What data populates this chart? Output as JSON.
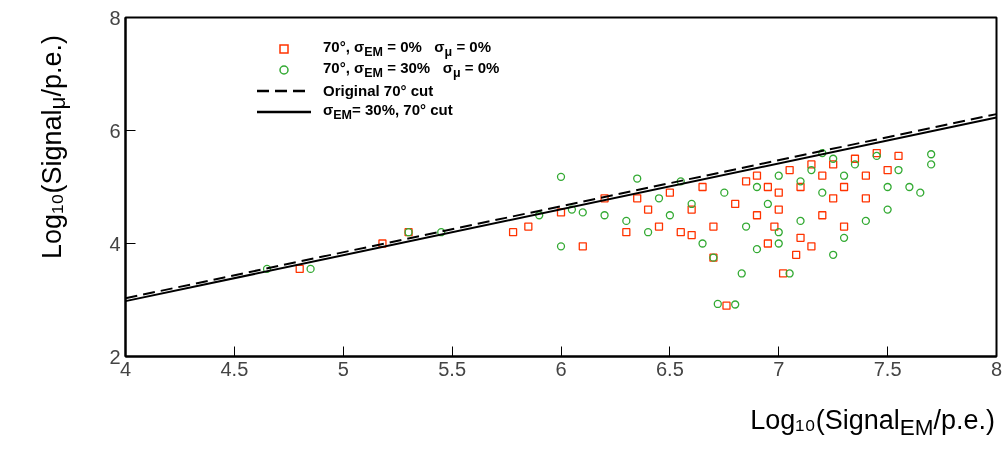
{
  "chart_data": {
    "type": "scatter",
    "xlabel": "Log₁₀(Signal$_{EM}$/p.e.)",
    "ylabel": "Log₁₀(Signal$_{μ}$/p.e.)",
    "xlim": [
      4,
      8
    ],
    "ylim": [
      2,
      8
    ],
    "xticks": [
      4,
      4.5,
      5,
      5.5,
      6,
      6.5,
      7,
      7.5,
      8
    ],
    "yticks": [
      2,
      4,
      6,
      8
    ],
    "grid": false,
    "legend": "top left",
    "series": [
      {
        "name": "70°, σ$_{EM}$ = 0%   σ$_{μ}$ = 0%",
        "marker": "square",
        "color": "#ff3300",
        "x": [
          4.8,
          5.18,
          5.3,
          5.78,
          5.85,
          6.0,
          6.1,
          6.2,
          6.3,
          6.35,
          6.4,
          6.45,
          6.5,
          6.55,
          6.6,
          6.65,
          6.7,
          6.7,
          6.76,
          6.8,
          6.85,
          6.9,
          6.9,
          6.95,
          7.0,
          7.02,
          7.05,
          7.1,
          7.1,
          7.15,
          7.15,
          7.2,
          7.2,
          7.25,
          7.25,
          7.3,
          7.3,
          7.35,
          7.4,
          7.45,
          7.5,
          7.55,
          6.98,
          6.6,
          7.08,
          6.95,
          7.0,
          7.4
        ],
        "values": [
          3.55,
          4.0,
          4.2,
          4.2,
          4.3,
          4.55,
          3.95,
          4.8,
          4.2,
          4.8,
          4.6,
          4.3,
          4.9,
          4.2,
          4.6,
          5.0,
          3.75,
          4.3,
          2.9,
          4.7,
          5.1,
          4.5,
          5.2,
          4.0,
          4.9,
          3.47,
          5.3,
          4.1,
          5.0,
          3.95,
          5.4,
          4.5,
          5.2,
          4.8,
          5.4,
          5.0,
          4.3,
          5.5,
          5.2,
          5.6,
          5.3,
          5.55,
          4.3,
          4.15,
          3.8,
          5.0,
          4.6,
          4.8
        ]
      },
      {
        "name": "70°, σ$_{EM}$ = 30%   σ$_{μ}$ = 0%",
        "marker": "circle",
        "color": "#33aa33",
        "x": [
          4.85,
          4.65,
          5.3,
          5.45,
          5.9,
          6.0,
          6.0,
          6.05,
          6.1,
          6.2,
          6.3,
          6.35,
          6.4,
          6.45,
          6.5,
          6.55,
          6.6,
          6.65,
          6.7,
          6.72,
          6.8,
          6.83,
          6.85,
          6.9,
          6.95,
          7.0,
          7.05,
          7.0,
          7.1,
          7.15,
          7.2,
          7.25,
          7.25,
          7.3,
          7.3,
          7.35,
          7.4,
          7.45,
          7.5,
          7.55,
          7.6,
          7.65,
          7.7,
          7.7,
          7.5,
          7.1,
          6.9,
          6.75,
          7.2,
          7.0
        ],
        "values": [
          3.55,
          3.55,
          4.2,
          4.2,
          4.5,
          5.18,
          3.95,
          4.6,
          4.55,
          4.5,
          4.4,
          5.15,
          4.2,
          4.8,
          4.5,
          5.1,
          4.7,
          4.0,
          3.75,
          2.93,
          2.92,
          3.47,
          4.3,
          5.0,
          4.7,
          5.2,
          3.47,
          4.2,
          5.1,
          5.3,
          4.9,
          3.8,
          5.5,
          4.1,
          5.2,
          5.4,
          4.4,
          5.55,
          5.0,
          5.3,
          5.0,
          4.9,
          5.58,
          5.4,
          4.6,
          4.4,
          3.9,
          4.9,
          5.6,
          4.0
        ]
      },
      {
        "name": "Original 70° cut",
        "type": "line",
        "line_style": "dashed",
        "color": "#000000",
        "x": [
          4,
          8
        ],
        "values": [
          3.03,
          6.29
        ]
      },
      {
        "name": "σ$_{EM}$= 30%, 70° cut",
        "type": "line",
        "line_style": "solid",
        "color": "#000000",
        "x": [
          4,
          8
        ],
        "values": [
          2.98,
          6.23
        ]
      }
    ]
  }
}
